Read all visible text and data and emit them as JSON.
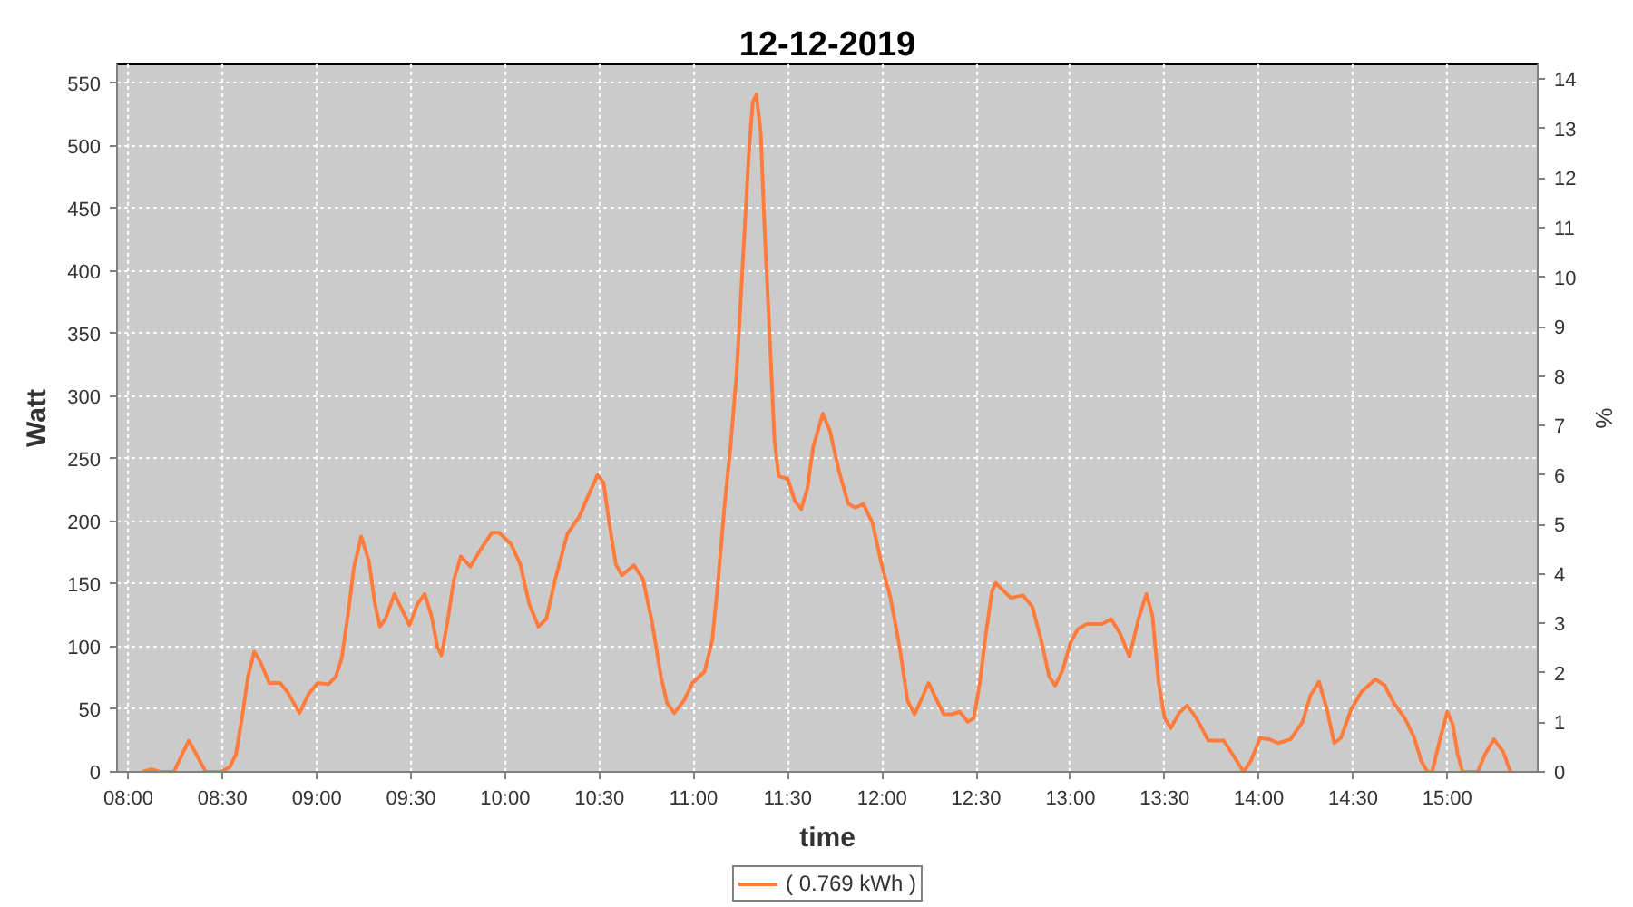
{
  "chart_data": {
    "type": "line",
    "title": "12-12-2019",
    "xlabel": "time",
    "ylabel": "Watt",
    "y2label": "%",
    "x": [
      8.074,
      8.122,
      8.17,
      8.241,
      8.321,
      8.411,
      8.491,
      8.539,
      8.571,
      8.603,
      8.635,
      8.668,
      8.7,
      8.748,
      8.806,
      8.844,
      8.908,
      8.956,
      9.004,
      9.062,
      9.101,
      9.133,
      9.165,
      9.197,
      9.236,
      9.277,
      9.309,
      9.335,
      9.364,
      9.412,
      9.454,
      9.492,
      9.534,
      9.573,
      9.608,
      9.64,
      9.662,
      9.694,
      9.727,
      9.765,
      9.816,
      9.871,
      9.929,
      9.967,
      10.031,
      10.08,
      10.128,
      10.176,
      10.218,
      10.266,
      10.33,
      10.394,
      10.442,
      10.49,
      10.522,
      10.554,
      10.587,
      10.619,
      10.683,
      10.731,
      10.779,
      10.827,
      10.859,
      10.897,
      10.949,
      10.994,
      11.058,
      11.099,
      11.131,
      11.163,
      11.196,
      11.228,
      11.26,
      11.292,
      11.314,
      11.333,
      11.356,
      11.378,
      11.404,
      11.429,
      11.452,
      11.5,
      11.538,
      11.571,
      11.603,
      11.635,
      11.686,
      11.724,
      11.772,
      11.821,
      11.859,
      11.901,
      11.949,
      11.997,
      12.045,
      12.093,
      12.135,
      12.173,
      12.212,
      12.247,
      12.285,
      12.327,
      12.372,
      12.413,
      12.455,
      12.487,
      12.519,
      12.551,
      12.583,
      12.603,
      12.635,
      12.684,
      12.748,
      12.797,
      12.845,
      12.887,
      12.919,
      12.958,
      13.0,
      13.039,
      13.087,
      13.168,
      13.216,
      13.265,
      13.313,
      13.361,
      13.403,
      13.435,
      13.468,
      13.5,
      13.532,
      13.577,
      13.619,
      13.668,
      13.732,
      13.813,
      13.861,
      13.919,
      13.958,
      14.006,
      14.055,
      14.103,
      14.168,
      14.232,
      14.274,
      14.319,
      14.361,
      14.4,
      14.435,
      14.49,
      14.545,
      14.619,
      14.668,
      14.716,
      14.774,
      14.823,
      14.861,
      14.894,
      14.919,
      14.965,
      15.0,
      15.029,
      15.055,
      15.081,
      15.161,
      15.2,
      15.248,
      15.297,
      15.335
    ],
    "series": [
      {
        "name": "( 0.769 kWh )",
        "color": "#ff7c3c",
        "values": [
          0,
          2,
          0,
          0,
          25,
          0,
          0,
          4,
          14,
          43,
          76,
          96,
          88,
          71,
          71,
          64,
          47,
          62,
          71,
          70,
          76,
          91,
          125,
          163,
          188,
          168,
          134,
          116,
          122,
          142,
          129,
          117,
          134,
          142,
          125,
          100,
          93,
          120,
          153,
          172,
          164,
          178,
          191,
          191,
          182,
          166,
          134,
          116,
          122,
          154,
          190,
          204,
          221,
          237,
          231,
          197,
          166,
          157,
          165,
          154,
          120,
          76,
          55,
          47,
          57,
          71,
          80,
          105,
          154,
          211,
          260,
          318,
          404,
          491,
          535,
          541,
          511,
          429,
          347,
          265,
          236,
          234,
          216,
          210,
          226,
          260,
          286,
          272,
          240,
          214,
          211,
          214,
          199,
          166,
          139,
          100,
          57,
          46,
          59,
          71,
          59,
          46,
          46,
          48,
          40,
          43,
          71,
          110,
          144,
          151,
          146,
          139,
          141,
          132,
          105,
          76,
          69,
          81,
          103,
          114,
          118,
          118,
          122,
          110,
          92,
          122,
          142,
          125,
          71,
          43,
          35,
          47,
          53,
          43,
          25,
          25,
          14,
          0,
          9,
          27,
          26,
          23,
          26,
          40,
          61,
          72,
          50,
          23,
          27,
          50,
          64,
          74,
          69,
          55,
          43,
          28,
          9,
          0,
          0,
          28,
          48,
          38,
          14,
          0,
          0,
          14,
          26,
          16,
          0
        ]
      }
    ],
    "xlim": [
      7.94,
      15.48
    ],
    "ylim": [
      0,
      565
    ],
    "y2lim": [
      0,
      14.3
    ],
    "xticks": [
      {
        "value": 8,
        "label": "08:00"
      },
      {
        "value": 8.5,
        "label": "08:30"
      },
      {
        "value": 9,
        "label": "09:00"
      },
      {
        "value": 9.5,
        "label": "09:30"
      },
      {
        "value": 10,
        "label": "10:00"
      },
      {
        "value": 10.5,
        "label": "10:30"
      },
      {
        "value": 11,
        "label": "11:00"
      },
      {
        "value": 11.5,
        "label": "11:30"
      },
      {
        "value": 12,
        "label": "12:00"
      },
      {
        "value": 12.5,
        "label": "12:30"
      },
      {
        "value": 13,
        "label": "13:00"
      },
      {
        "value": 13.5,
        "label": "13:30"
      },
      {
        "value": 14,
        "label": "14:00"
      },
      {
        "value": 14.5,
        "label": "14:30"
      },
      {
        "value": 15,
        "label": "15:00"
      }
    ],
    "yticks": [
      0,
      50,
      100,
      150,
      200,
      250,
      300,
      350,
      400,
      450,
      500,
      550
    ],
    "y2ticks": [
      0,
      1,
      2,
      3,
      4,
      5,
      6,
      7,
      8,
      9,
      10,
      11,
      12,
      13,
      14
    ],
    "grid": true,
    "legend": "bottom",
    "line_style": "solid"
  }
}
